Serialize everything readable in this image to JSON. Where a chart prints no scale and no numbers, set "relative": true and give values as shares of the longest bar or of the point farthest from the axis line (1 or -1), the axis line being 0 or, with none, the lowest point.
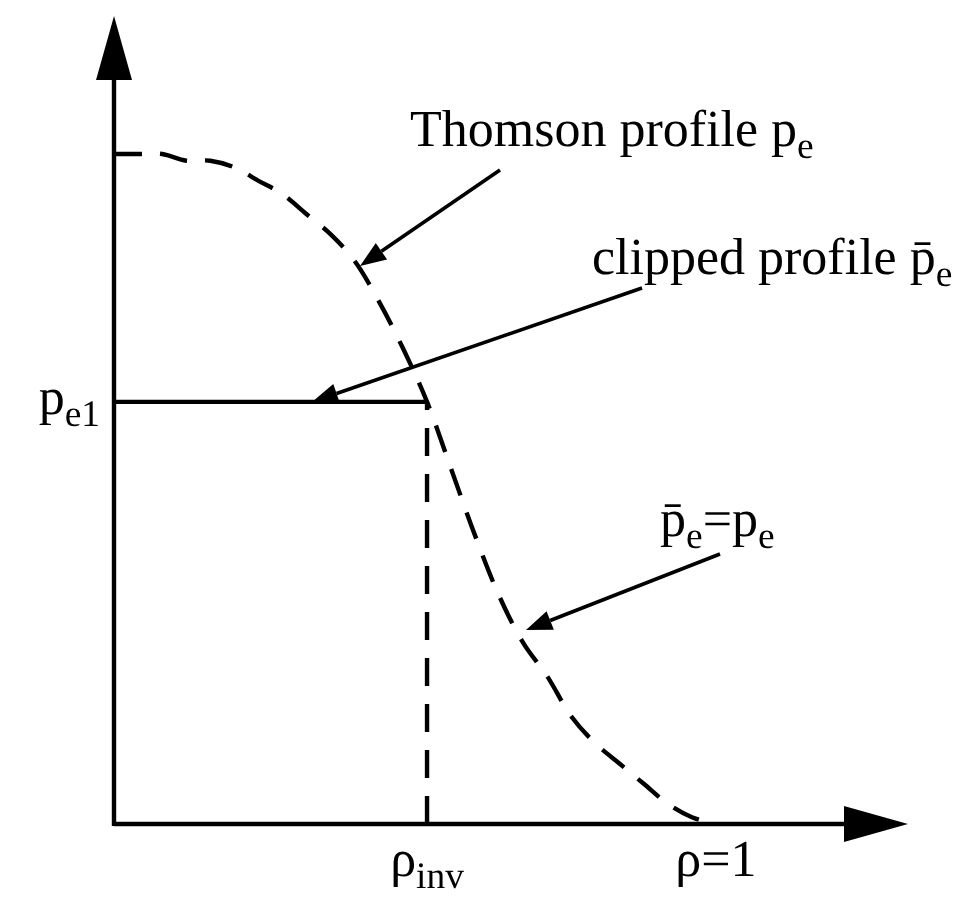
{
  "chart_data": {
    "type": "line",
    "relative": true,
    "categories": [
      null,
      null,
      null,
      null,
      null,
      null,
      null,
      null,
      null,
      null,
      null,
      null,
      null,
      "ρ$_{inv}$",
      null,
      null,
      null,
      null,
      null,
      null,
      null,
      null,
      null,
      null,
      null,
      "ρ=1"
    ],
    "series": [
      {
        "color": "#000000",
        "line_style": "dashed",
        "values": [
          1,
          1,
          1,
          0.99,
          0.99,
          0.98,
          0.96,
          0.94,
          0.91,
          0.88,
          0.84,
          0.78,
          0.71,
          0.63,
          0.53,
          0.43,
          0.34,
          0.27,
          0.22,
          0.16,
          0.12,
          0.09,
          0.06,
          0.03,
          0.01,
          0
        ]
      },
      {
        "color": "#000000",
        "line_style": "solid",
        "values": [
          0.63,
          0.63,
          0.63,
          0.63,
          0.63,
          0.63,
          0.63,
          0.63,
          0.63,
          0.63,
          0.63,
          0.63,
          0.63,
          0.63,
          null,
          null,
          null,
          null,
          null,
          null,
          null,
          null,
          null,
          null,
          null,
          null
        ]
      }
    ],
    "ref_lines": [
      {
        "axis": "x",
        "value": "ρ$_{inv}$",
        "color": "#000000",
        "line_style": "dashed"
      }
    ],
    "annotations": [
      "Thomson profile p$_{e}$",
      "clipped profile p̄$_{e}$",
      "p$_{e1}$",
      "p̄$_{e}$=p$_{e}$"
    ]
  }
}
